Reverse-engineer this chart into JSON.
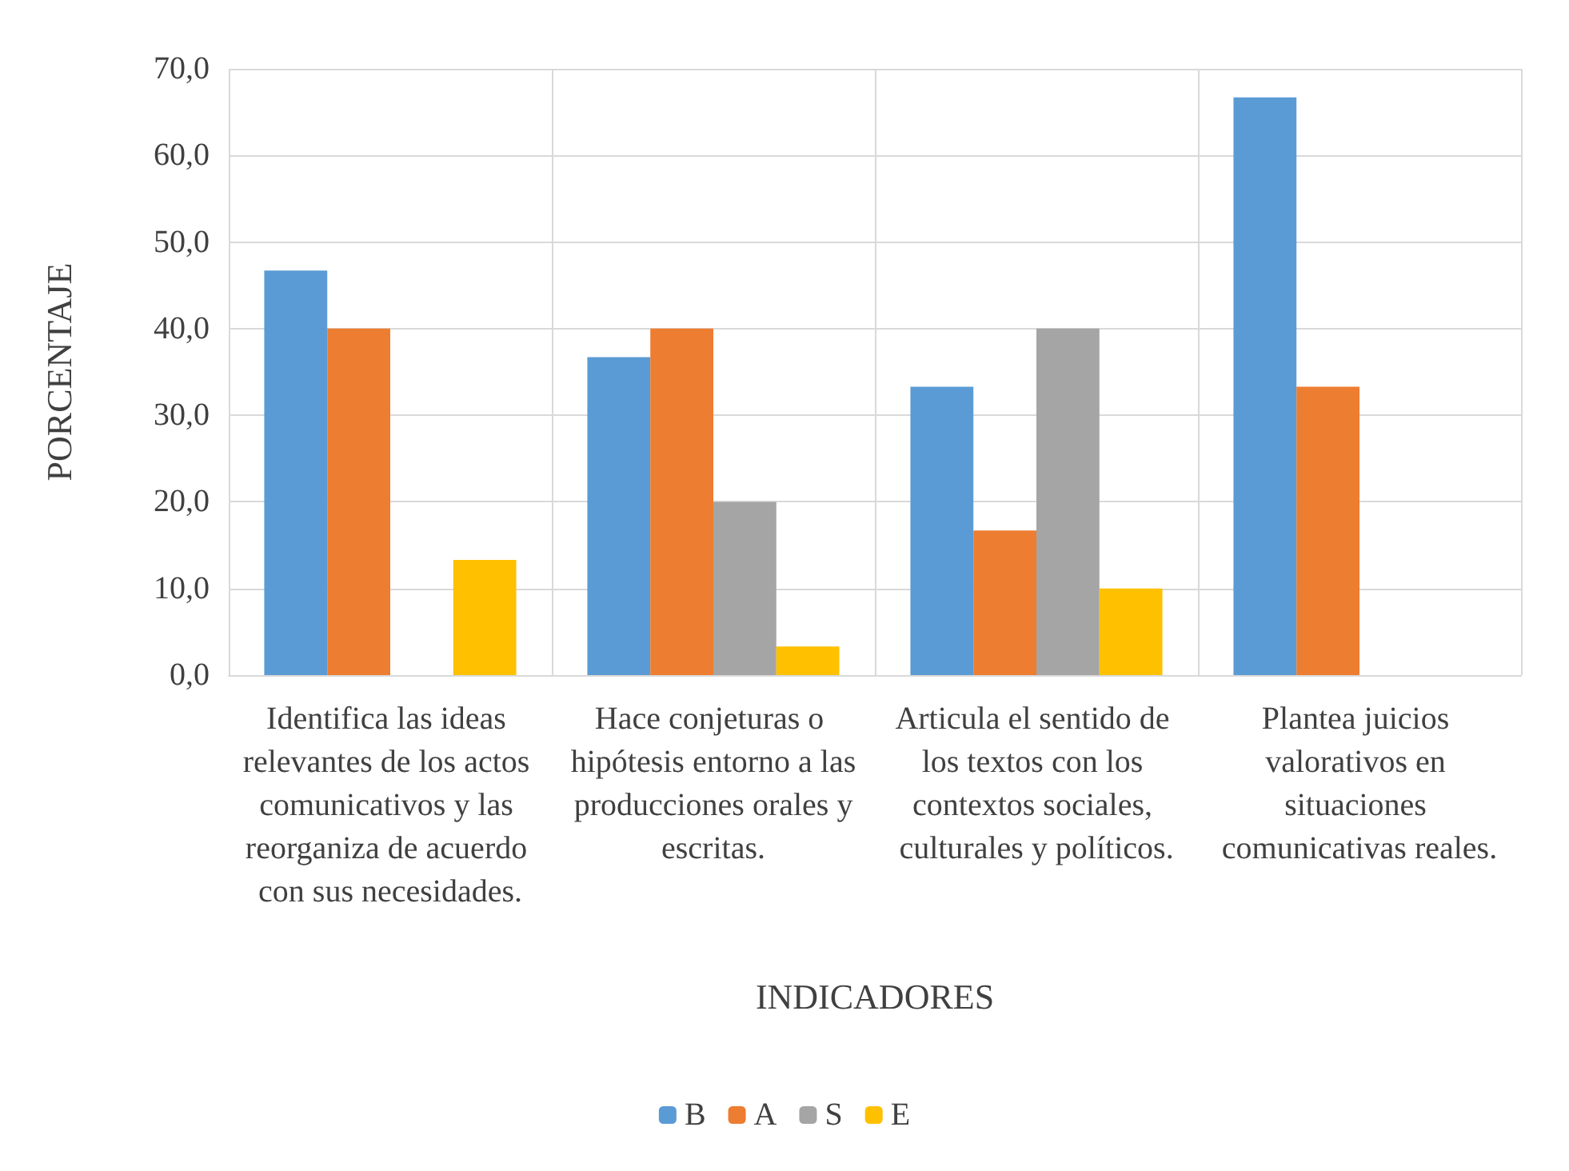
{
  "chart_data": {
    "type": "bar",
    "xlabel": "INDICADORES",
    "ylabel": "PORCENTAJE",
    "categories": [
      "Identifica las ideas relevantes de los actos comunicativos y las reorganiza de acuerdo con sus necesidades.",
      "Hace conjeturas o hipótesis entorno a las producciones orales y escritas.",
      "Articula el sentido de los textos con los contextos sociales, culturales y políticos.",
      "Plantea juicios valorativos en situaciones comunicativas reales."
    ],
    "series": [
      {
        "name": "B",
        "color": "#5b9bd5",
        "values": [
          46.7,
          36.7,
          33.3,
          66.7
        ]
      },
      {
        "name": "A",
        "color": "#ed7d31",
        "values": [
          40.0,
          40.0,
          16.7,
          33.3
        ]
      },
      {
        "name": "S",
        "color": "#a5a5a5",
        "values": [
          0,
          20.0,
          40.0,
          0
        ]
      },
      {
        "name": "E",
        "color": "#ffc000",
        "values": [
          13.3,
          3.3,
          10.0,
          0
        ]
      }
    ],
    "ylim": [
      0,
      70
    ],
    "yticks": [
      {
        "value": 0,
        "label": "0,0"
      },
      {
        "value": 10,
        "label": "10,0"
      },
      {
        "value": 20,
        "label": "20,0"
      },
      {
        "value": 30,
        "label": "30,0"
      },
      {
        "value": 40,
        "label": "40,0"
      },
      {
        "value": 50,
        "label": "50,0"
      },
      {
        "value": 60,
        "label": "60,0"
      },
      {
        "value": 70,
        "label": "70,0"
      }
    ],
    "grid": true,
    "legend": "bottom"
  }
}
